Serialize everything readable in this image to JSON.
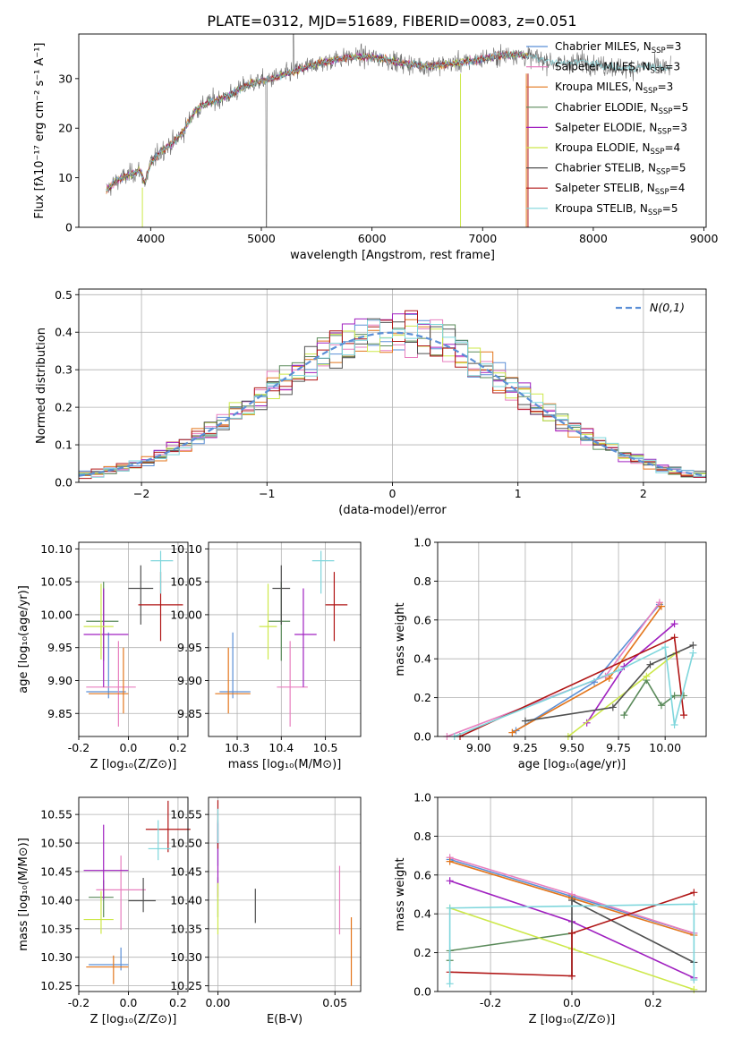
{
  "figure": {
    "title": "PLATE=0312, MJD=51689, FIBERID=0083, z=0.051"
  },
  "models": [
    {
      "name": "Chabrier MILES",
      "nssp": "3",
      "color": "#5b8fd6"
    },
    {
      "name": "Salpeter MILES",
      "nssp": "3",
      "color": "#e87fbf"
    },
    {
      "name": "Kroupa MILES",
      "nssp": "3",
      "color": "#e3761c"
    },
    {
      "name": "Chabrier ELODIE",
      "nssp": "5",
      "color": "#5a8a5a"
    },
    {
      "name": "Salpeter ELODIE",
      "nssp": "3",
      "color": "#a020c0"
    },
    {
      "name": "Kroupa ELODIE",
      "nssp": "4",
      "color": "#cde84a"
    },
    {
      "name": "Chabrier STELIB",
      "nssp": "5",
      "color": "#505050"
    },
    {
      "name": "Salpeter STELIB",
      "nssp": "4",
      "color": "#b01515"
    },
    {
      "name": "Kroupa STELIB",
      "nssp": "5",
      "color": "#7ed6dc"
    }
  ],
  "legend_suffix": "N",
  "legend_sub": "SSP",
  "chart_data": [
    {
      "id": "spectrum",
      "type": "line",
      "xlabel": "wavelength [Angstrom, rest frame]",
      "ylabel": "Flux [fλ10⁻¹⁷ erg cm⁻² s⁻¹ A⁻¹]",
      "xlim": [
        3350,
        9020
      ],
      "ylim": [
        0,
        39
      ],
      "xticks": [
        4000,
        5000,
        6000,
        7000,
        8000,
        9000
      ],
      "yticks": [
        0,
        10,
        20,
        30
      ],
      "legend": "right",
      "continuum": {
        "x": [
          3600,
          3700,
          3800,
          3900,
          3950,
          4000,
          4100,
          4200,
          4300,
          4400,
          4500,
          4700,
          4900,
          5100,
          5300,
          5500,
          5700,
          5900,
          6100,
          6300,
          6500,
          6700,
          6900,
          7100,
          7300,
          7500,
          7700,
          7900,
          8100,
          8300,
          8500,
          8700
        ],
        "y": [
          7.5,
          9.5,
          10.5,
          11.5,
          9,
          13,
          15.5,
          17,
          19.5,
          23.5,
          25,
          26.5,
          29,
          30,
          31.5,
          33,
          34,
          34.5,
          34,
          33,
          32.5,
          33,
          33.5,
          34.5,
          35,
          34,
          33,
          33.5,
          32.5,
          32,
          32.5,
          32
        ]
      },
      "model_range": [
        3600,
        7420
      ],
      "data_range": [
        3600,
        8700
      ]
    },
    {
      "id": "residuals",
      "type": "step",
      "xlabel": "(data-model)/error",
      "ylabel": "Normed distribution",
      "xlim": [
        -2.5,
        2.5
      ],
      "ylim": [
        0,
        0.515
      ],
      "xticks": [
        -2,
        -1,
        0,
        1,
        2
      ],
      "yticks": [
        0,
        0.1,
        0.2,
        0.3,
        0.4,
        0.5
      ],
      "bin_width": 0.1,
      "gauss_label": "N(0,1)",
      "gauss_color": "#5b8fd6",
      "grid": true
    },
    {
      "id": "age_vs_Z",
      "type": "errorbar",
      "xlabel": "Z [log₁₀(Z/Z⊙)]",
      "ylabel": "age  [log₁₀(age/yr)]",
      "xlim": [
        -0.2,
        0.24
      ],
      "ylim": [
        9.815,
        10.11
      ],
      "xticks": [
        -0.2,
        0.0,
        0.2
      ],
      "yticks": [
        9.85,
        9.9,
        9.95,
        10.0,
        10.05,
        10.1
      ],
      "points": [
        {
          "x": -0.08,
          "y": 9.883,
          "ex": [
            0.09,
            0.07
          ],
          "ey": [
            0.01,
            0.09
          ]
        },
        {
          "x": -0.04,
          "y": 9.89,
          "ex": [
            0.13,
            0.07
          ],
          "ey": [
            0.06,
            0.07
          ]
        },
        {
          "x": -0.02,
          "y": 9.88,
          "ex": [
            0.14,
            0.02
          ],
          "ey": [
            0.03,
            0.07
          ]
        },
        {
          "x": -0.1,
          "y": 9.99,
          "ex": [
            0.07,
            0.06
          ],
          "ey": [
            0.06,
            0.06
          ]
        },
        {
          "x": -0.1,
          "y": 9.97,
          "ex": [
            0.08,
            0.1
          ],
          "ey": [
            0.08,
            0.07
          ]
        },
        {
          "x": -0.11,
          "y": 9.982,
          "ex": [
            0.07,
            0.05
          ],
          "ey": [
            0.05,
            0.065
          ]
        },
        {
          "x": 0.05,
          "y": 10.04,
          "ex": [
            0.05,
            0.05
          ],
          "ey": [
            0.055,
            0.035
          ]
        },
        {
          "x": 0.13,
          "y": 10.015,
          "ex": [
            0.09,
            0.09
          ],
          "ey": [
            0.055,
            0.05
          ]
        },
        {
          "x": 0.13,
          "y": 10.082,
          "ex": [
            0.04,
            0.05
          ],
          "ey": [
            0.05,
            0.015
          ]
        }
      ]
    },
    {
      "id": "age_vs_mass",
      "type": "errorbar",
      "xlabel": "mass [log₁₀(M/M⊙)]",
      "ylabel": "",
      "xlim": [
        10.235,
        10.58
      ],
      "ylim": [
        9.815,
        10.11
      ],
      "xticks": [
        10.3,
        10.4,
        10.5
      ],
      "yticks": [
        9.85,
        9.9,
        9.95,
        10.0,
        10.05,
        10.1
      ],
      "points": [
        {
          "x": 10.29,
          "y": 9.883,
          "ex": [
            0.03,
            0.04
          ],
          "ey": [
            0.01,
            0.09
          ]
        },
        {
          "x": 10.42,
          "y": 9.89,
          "ex": [
            0.03,
            0.04
          ],
          "ey": [
            0.06,
            0.07
          ]
        },
        {
          "x": 10.28,
          "y": 9.88,
          "ex": [
            0.03,
            0.05
          ],
          "ey": [
            0.03,
            0.07
          ]
        },
        {
          "x": 10.4,
          "y": 9.99,
          "ex": [
            0.03,
            0.02
          ],
          "ey": [
            0.06,
            0.06
          ]
        },
        {
          "x": 10.45,
          "y": 9.97,
          "ex": [
            0.02,
            0.03
          ],
          "ey": [
            0.08,
            0.07
          ]
        },
        {
          "x": 10.37,
          "y": 9.982,
          "ex": [
            0.02,
            0.02
          ],
          "ey": [
            0.05,
            0.065
          ]
        },
        {
          "x": 10.4,
          "y": 10.04,
          "ex": [
            0.02,
            0.02
          ],
          "ey": [
            0.055,
            0.035
          ]
        },
        {
          "x": 10.52,
          "y": 10.015,
          "ex": [
            0.02,
            0.03
          ],
          "ey": [
            0.055,
            0.05
          ]
        },
        {
          "x": 10.49,
          "y": 10.082,
          "ex": [
            0.02,
            0.03
          ],
          "ey": [
            0.05,
            0.015
          ]
        }
      ]
    },
    {
      "id": "weight_vs_age",
      "type": "line",
      "xlabel": "age  [log₁₀(age/yr)]",
      "ylabel": "mass weight",
      "xlim": [
        8.78,
        10.22
      ],
      "ylim": [
        0,
        1
      ],
      "xticks": [
        9.0,
        9.25,
        9.5,
        9.75,
        10.0
      ],
      "yticks": [
        0,
        0.2,
        0.4,
        0.6,
        0.8,
        1.0
      ],
      "series": [
        {
          "x": [
            9.2,
            9.62,
            9.97
          ],
          "y": [
            0.03,
            0.28,
            0.68
          ]
        },
        {
          "x": [
            8.83,
            9.68,
            9.97
          ],
          "y": [
            0.0,
            0.31,
            0.69
          ]
        },
        {
          "x": [
            9.18,
            9.7,
            9.98
          ],
          "y": [
            0.02,
            0.3,
            0.67
          ]
        },
        {
          "x": [
            9.78,
            9.9,
            9.98,
            10.05,
            10.1
          ],
          "y": [
            0.11,
            0.29,
            0.16,
            0.21,
            0.21
          ]
        },
        {
          "x": [
            9.58,
            9.78,
            10.05
          ],
          "y": [
            0.07,
            0.36,
            0.58
          ]
        },
        {
          "x": [
            9.48,
            9.9,
            10.06
          ],
          "y": [
            0.0,
            0.31,
            0.43
          ]
        },
        {
          "x": [
            9.25,
            9.72,
            9.92,
            10.15
          ],
          "y": [
            0.08,
            0.15,
            0.37,
            0.47
          ]
        },
        {
          "x": [
            8.9,
            10.05,
            10.1
          ],
          "y": [
            0.0,
            0.51,
            0.11
          ]
        },
        {
          "x": [
            8.87,
            9.75,
            10.0,
            10.05,
            10.15
          ],
          "y": [
            0.0,
            0.34,
            0.46,
            0.06,
            0.43
          ]
        }
      ]
    },
    {
      "id": "mass_vs_Z",
      "type": "errorbar",
      "xlabel": "Z [log₁₀(Z/Z⊙)]",
      "ylabel": "mass [log₁₀(M/M⊙)]",
      "xlim": [
        -0.2,
        0.24
      ],
      "ylim": [
        10.24,
        10.58
      ],
      "xticks": [
        -0.2,
        0.0,
        0.2
      ],
      "yticks": [
        10.25,
        10.3,
        10.35,
        10.4,
        10.45,
        10.5,
        10.55
      ],
      "points": [
        {
          "x": -0.03,
          "y": 10.287,
          "ex": [
            0.13,
            0.03
          ],
          "ey": [
            0.01,
            0.03
          ]
        },
        {
          "x": -0.03,
          "y": 10.418,
          "ex": [
            0.1,
            0.1
          ],
          "ey": [
            0.07,
            0.06
          ]
        },
        {
          "x": -0.06,
          "y": 10.283,
          "ex": [
            0.11,
            0.06
          ],
          "ey": [
            0.03,
            0.02
          ]
        },
        {
          "x": -0.1,
          "y": 10.405,
          "ex": [
            0.06,
            0.04
          ],
          "ey": [
            0.035,
            0.03
          ]
        },
        {
          "x": -0.1,
          "y": 10.452,
          "ex": [
            0.08,
            0.1
          ],
          "ey": [
            0.05,
            0.08
          ]
        },
        {
          "x": -0.11,
          "y": 10.366,
          "ex": [
            0.07,
            0.05
          ],
          "ey": [
            0.025,
            0.05
          ]
        },
        {
          "x": 0.06,
          "y": 10.399,
          "ex": [
            0.06,
            0.05
          ],
          "ey": [
            0.02,
            0.04
          ]
        },
        {
          "x": 0.16,
          "y": 10.524,
          "ex": [
            0.09,
            0.09
          ],
          "ey": [
            0.04,
            0.05
          ]
        },
        {
          "x": 0.12,
          "y": 10.49,
          "ex": [
            0.04,
            0.05
          ],
          "ey": [
            0.02,
            0.05
          ]
        }
      ]
    },
    {
      "id": "mass_vs_ebv",
      "type": "errorbar",
      "xlabel": "E(B-V)",
      "ylabel": "",
      "xlim": [
        -0.004,
        0.061
      ],
      "ylim": [
        10.24,
        10.58
      ],
      "xticks": [
        0.0,
        0.05
      ],
      "yticks": [
        10.25,
        10.3,
        10.35,
        10.4,
        10.45,
        10.5,
        10.55
      ],
      "points": [
        {
          "x": 0.0,
          "y": 10.49,
          "ex": [
            0,
            0
          ],
          "ey": [
            0.03,
            0.05
          ]
        },
        {
          "x": 0.052,
          "y": 10.41,
          "ex": [
            0,
            0
          ],
          "ey": [
            0.07,
            0.05
          ]
        },
        {
          "x": 0.057,
          "y": 10.3,
          "ex": [
            0,
            0
          ],
          "ey": [
            0.05,
            0.07
          ]
        },
        {
          "x": 0.0,
          "y": 10.4,
          "ex": [
            0,
            0
          ],
          "ey": [
            0.03,
            0.04
          ]
        },
        {
          "x": 0.0,
          "y": 10.455,
          "ex": [
            0,
            0
          ],
          "ey": [
            0.05,
            0.08
          ]
        },
        {
          "x": 0.0,
          "y": 10.38,
          "ex": [
            0,
            0
          ],
          "ey": [
            0.04,
            0.05
          ]
        },
        {
          "x": 0.016,
          "y": 10.385,
          "ex": [
            0,
            0
          ],
          "ey": [
            0.025,
            0.035
          ]
        },
        {
          "x": 0.0,
          "y": 10.53,
          "ex": [
            0,
            0
          ],
          "ey": [
            0.04,
            0.045
          ]
        },
        {
          "x": 0.0,
          "y": 10.52,
          "ex": [
            0,
            0
          ],
          "ey": [
            0.02,
            0.04
          ]
        }
      ]
    },
    {
      "id": "weight_vs_Z",
      "type": "line",
      "xlabel": "Z [log₁₀(Z/Z⊙)]",
      "ylabel": "mass weight",
      "xlim": [
        -0.33,
        0.33
      ],
      "ylim": [
        0,
        1
      ],
      "xticks": [
        -0.2,
        0.0,
        0.2
      ],
      "yticks": [
        0,
        0.2,
        0.4,
        0.6,
        0.8,
        1.0
      ],
      "series": [
        {
          "x": [
            -0.3,
            0.0,
            0.3
          ],
          "y": [
            0.68,
            0.49,
            0.3
          ]
        },
        {
          "x": [
            -0.3,
            0.0,
            0.3
          ],
          "y": [
            0.69,
            0.5,
            0.3
          ]
        },
        {
          "x": [
            -0.3,
            0.0,
            0.3
          ],
          "y": [
            0.67,
            0.48,
            0.29
          ]
        },
        {
          "x": [
            -0.3,
            -0.3,
            0.0
          ],
          "y": [
            0.16,
            0.21,
            0.3
          ]
        },
        {
          "x": [
            -0.3,
            0.0,
            0.3
          ],
          "y": [
            0.57,
            0.36,
            0.07
          ]
        },
        {
          "x": [
            -0.3,
            0.0,
            0.3
          ],
          "y": [
            0.43,
            0.22,
            0.01
          ]
        },
        {
          "x": [
            0.0,
            0.0,
            0.3
          ],
          "y": [
            0.08,
            0.47,
            0.15
          ]
        },
        {
          "x": [
            -0.3,
            0.0,
            0.0,
            0.3
          ],
          "y": [
            0.1,
            0.08,
            0.3,
            0.51
          ]
        },
        {
          "x": [
            -0.3,
            -0.3,
            0.3,
            0.3
          ],
          "y": [
            0.04,
            0.43,
            0.45,
            0.06
          ]
        }
      ]
    }
  ]
}
